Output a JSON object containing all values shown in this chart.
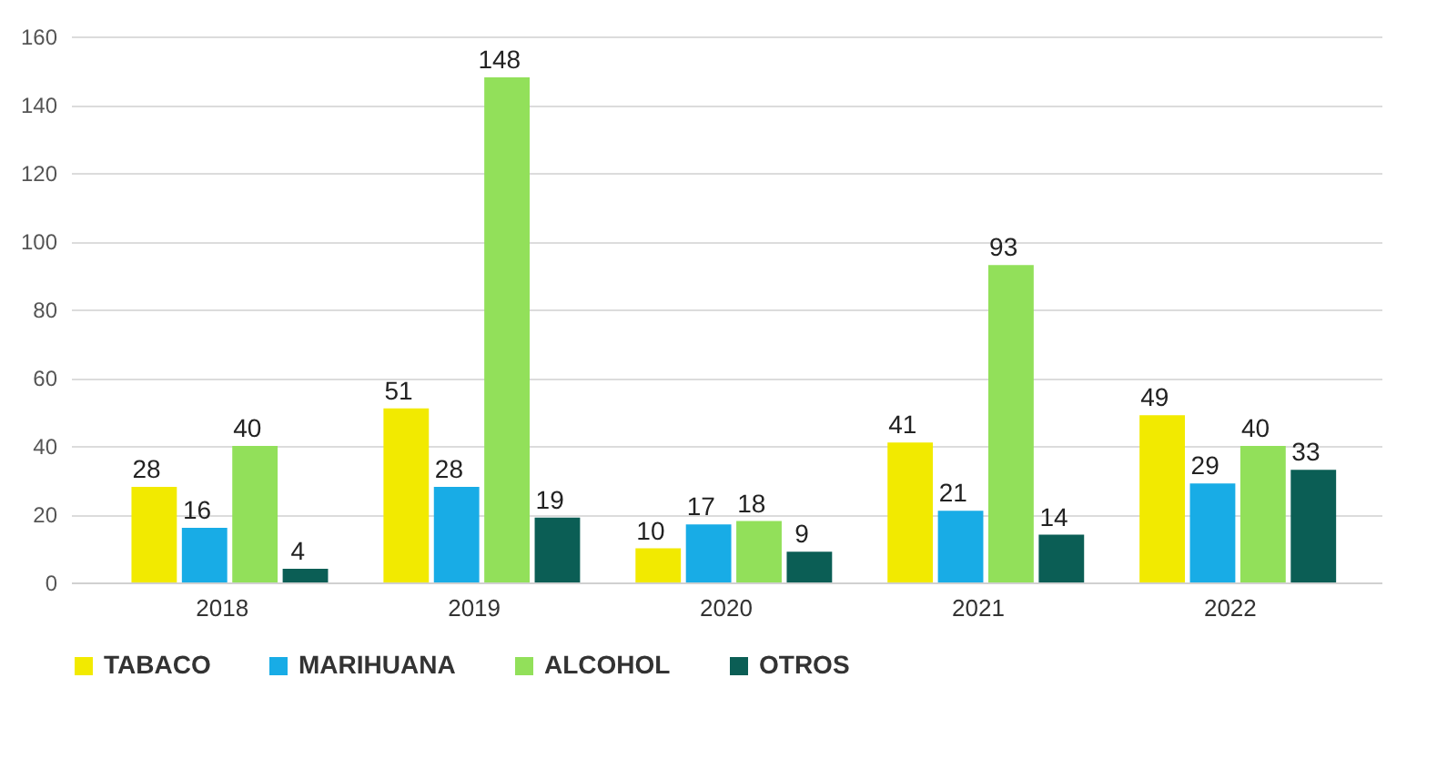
{
  "chart_data": {
    "type": "bar",
    "categories": [
      "2018",
      "2019",
      "2020",
      "2021",
      "2022"
    ],
    "series": [
      {
        "name": "TABACO",
        "color": "#f2ea00",
        "values": [
          28,
          51,
          10,
          41,
          49
        ]
      },
      {
        "name": "MARIHUANA",
        "color": "#18ace6",
        "values": [
          16,
          28,
          17,
          21,
          29
        ]
      },
      {
        "name": "ALCOHOL",
        "color": "#92e05a",
        "values": [
          40,
          148,
          18,
          93,
          40
        ]
      },
      {
        "name": "OTROS",
        "color": "#0b5e55",
        "values": [
          4,
          19,
          9,
          14,
          33
        ]
      }
    ],
    "ylim": [
      0,
      160
    ],
    "yticks": [
      0,
      20,
      40,
      60,
      80,
      100,
      120,
      140,
      160
    ],
    "grid": "y",
    "legend": "bottom",
    "data_labels": true
  }
}
